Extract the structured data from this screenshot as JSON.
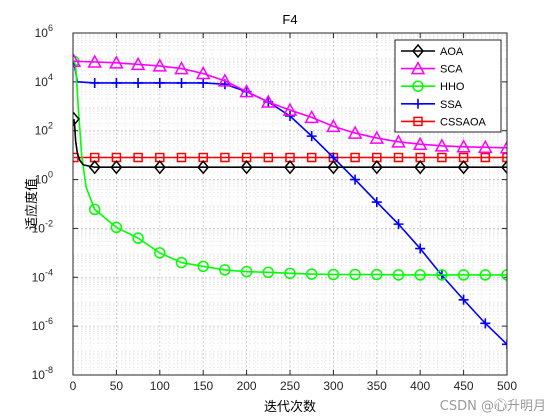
{
  "chart_data": {
    "type": "line",
    "title": "F4",
    "xlabel": "迭代次数",
    "ylabel": "适应度值",
    "xlim": [
      0,
      500
    ],
    "ylim_log10": [
      -8,
      6
    ],
    "yscale": "log",
    "grid": true,
    "minor_grid": true,
    "legend_placement": "top-right",
    "x_ticks": [
      0,
      50,
      100,
      150,
      200,
      250,
      300,
      350,
      400,
      450,
      500
    ],
    "y_tick_exponents": [
      -8,
      -6,
      -4,
      -2,
      0,
      2,
      4,
      6
    ],
    "y_tick_base": "10",
    "series": [
      {
        "name": "AOA",
        "color": "#000000",
        "marker": "diamond",
        "x": [
          1,
          2,
          3,
          5,
          8,
          12,
          25,
          50,
          100,
          150,
          200,
          250,
          300,
          350,
          400,
          450,
          500
        ],
        "y": [
          300,
          150,
          40,
          12,
          6,
          4,
          3.2,
          3.2,
          3.2,
          3.2,
          3.2,
          3.2,
          3.2,
          3.2,
          3.2,
          3.2,
          3.2
        ]
      },
      {
        "name": "SCA",
        "color": "#ff00ff",
        "marker": "triangle",
        "x": [
          1,
          25,
          50,
          75,
          100,
          125,
          150,
          175,
          200,
          225,
          250,
          275,
          300,
          325,
          350,
          375,
          400,
          425,
          450,
          475,
          500
        ],
        "y": [
          70000,
          65000,
          60000,
          52000,
          45000,
          35000,
          22000,
          11000,
          4000,
          1500,
          700,
          350,
          150,
          80,
          50,
          35,
          28,
          24,
          22,
          21,
          20
        ]
      },
      {
        "name": "HHO",
        "color": "#00ff00",
        "marker": "circle",
        "x": [
          1,
          3,
          6,
          10,
          15,
          25,
          50,
          75,
          100,
          125,
          150,
          175,
          200,
          225,
          250,
          275,
          300,
          325,
          350,
          375,
          400,
          425,
          450,
          475,
          500
        ],
        "y": [
          70000,
          50000,
          1000,
          10,
          0.5,
          0.06,
          0.011,
          0.004,
          0.001,
          0.0004,
          0.00028,
          0.0002,
          0.00017,
          0.00016,
          0.000145,
          0.000135,
          0.00013,
          0.00013,
          0.00013,
          0.000125,
          0.000125,
          0.000125,
          0.000125,
          0.000125,
          0.000125
        ]
      },
      {
        "name": "SSA",
        "color": "#0000ff",
        "marker": "plus",
        "x": [
          1,
          5,
          25,
          50,
          75,
          100,
          125,
          150,
          175,
          200,
          225,
          250,
          275,
          300,
          325,
          350,
          375,
          400,
          425,
          450,
          475,
          500
        ],
        "y": [
          70000,
          10000,
          9000,
          9000,
          9000,
          9000,
          9000,
          9000,
          8000,
          4000,
          1500,
          400,
          60,
          8,
          1,
          0.12,
          0.015,
          0.0015,
          0.00012,
          1.2e-05,
          1.3e-06,
          1.8e-07
        ]
      },
      {
        "name": "CSSAOA",
        "color": "#ff0000",
        "marker": "square",
        "x": [
          1,
          25,
          50,
          75,
          100,
          125,
          150,
          175,
          200,
          225,
          250,
          275,
          300,
          325,
          350,
          375,
          400,
          425,
          450,
          475,
          500
        ],
        "y": [
          8,
          8,
          8,
          8,
          8,
          8,
          8,
          8,
          8,
          8,
          8,
          8,
          8,
          8,
          8,
          8,
          8,
          8,
          8,
          8,
          8
        ]
      }
    ]
  },
  "watermark": "CSDN @心⃝升明月"
}
